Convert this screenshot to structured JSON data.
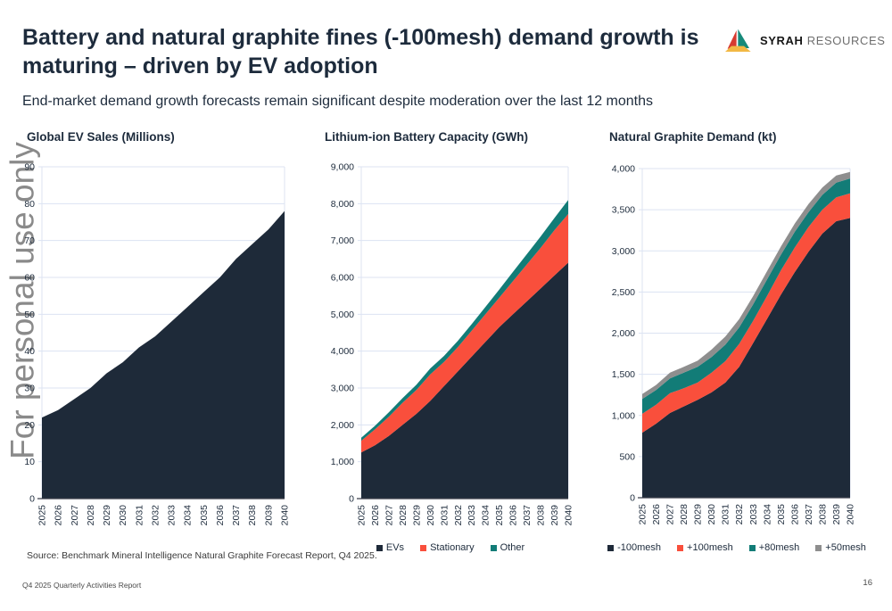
{
  "header": {
    "title_line1": "Battery and natural graphite fines (-100mesh) demand growth is",
    "title_line2": "maturing – driven by EV adoption",
    "subtitle": "End-market demand growth forecasts remain significant despite moderation over the last 12 months"
  },
  "logo": {
    "brand_bold": "SYRAH",
    "brand_light": "RESOURCES",
    "triangle_red": "#d63b30",
    "triangle_teal": "#168a7a",
    "triangle_gold": "#f2b844"
  },
  "watermark_text": "For personal use only",
  "colors": {
    "navy": "#1e2a39",
    "coral": "#f94f3c",
    "teal": "#127c77",
    "gray": "#8e8e8e",
    "gridline": "#dce3f2",
    "axis_line": "#3a3f4a",
    "tick_text": "#1d2b3c"
  },
  "chart_data": [
    {
      "type": "area",
      "stacked": false,
      "title": "Global EV Sales (Millions)",
      "xlabel": "",
      "ylabel": "",
      "x": [
        "2025",
        "2026",
        "2027",
        "2028",
        "2029",
        "2030",
        "2031",
        "2032",
        "2033",
        "2034",
        "2035",
        "2036",
        "2037",
        "2038",
        "2039",
        "2040"
      ],
      "ylim": [
        0,
        90
      ],
      "ystep": 10,
      "comma_format": false,
      "grid": true,
      "legend": false,
      "series": [
        {
          "name": "Global EV Sales",
          "color": "#1e2a39",
          "values": [
            22,
            24,
            27,
            30,
            34,
            37,
            41,
            44,
            48,
            52,
            56,
            60,
            65,
            69,
            73,
            78
          ]
        }
      ]
    },
    {
      "type": "area",
      "stacked": true,
      "title": "Lithium-ion Battery Capacity (GWh)",
      "xlabel": "",
      "ylabel": "",
      "x": [
        "2025",
        "2026",
        "2027",
        "2028",
        "2029",
        "2030",
        "2031",
        "2032",
        "2033",
        "2034",
        "2035",
        "2036",
        "2037",
        "2038",
        "2039",
        "2040"
      ],
      "ylim": [
        0,
        9000
      ],
      "ystep": 1000,
      "comma_format": true,
      "grid": true,
      "legend": true,
      "legend_position": "bottom",
      "series": [
        {
          "name": "EVs",
          "color": "#1e2a39",
          "values": [
            1250,
            1450,
            1700,
            2000,
            2300,
            2650,
            3050,
            3450,
            3850,
            4250,
            4650,
            5000,
            5350,
            5700,
            6050,
            6400
          ]
        },
        {
          "name": "Stationary",
          "color": "#f94f3c",
          "values": [
            320,
            430,
            520,
            600,
            650,
            720,
            660,
            660,
            700,
            750,
            800,
            900,
            1000,
            1100,
            1230,
            1320
          ]
        },
        {
          "name": "Other",
          "color": "#127c77",
          "values": [
            80,
            100,
            120,
            130,
            140,
            160,
            160,
            170,
            180,
            200,
            220,
            250,
            280,
            310,
            330,
            380
          ]
        }
      ]
    },
    {
      "type": "area",
      "stacked": true,
      "title": "Natural Graphite Demand (kt)",
      "xlabel": "",
      "ylabel": "",
      "x": [
        "2025",
        "2026",
        "2027",
        "2028",
        "2029",
        "2030",
        "2031",
        "2032",
        "2033",
        "2034",
        "2035",
        "2036",
        "2037",
        "2038",
        "2039",
        "2040"
      ],
      "ylim": [
        0,
        4000
      ],
      "ystep": 500,
      "comma_format": true,
      "grid": true,
      "legend": true,
      "legend_position": "bottom",
      "series": [
        {
          "name": "-100mesh",
          "color": "#1e2a39",
          "values": [
            790,
            900,
            1030,
            1110,
            1190,
            1280,
            1400,
            1590,
            1880,
            2170,
            2465,
            2740,
            2990,
            3210,
            3360,
            3400
          ]
        },
        {
          "name": "+100mesh",
          "color": "#f94f3c",
          "values": [
            230,
            230,
            240,
            220,
            210,
            240,
            260,
            280,
            270,
            280,
            295,
            300,
            300,
            290,
            290,
            300
          ]
        },
        {
          "name": "+80mesh",
          "color": "#127c77",
          "values": [
            180,
            180,
            180,
            190,
            190,
            190,
            200,
            200,
            200,
            200,
            190,
            190,
            180,
            180,
            180,
            180
          ]
        },
        {
          "name": "+50mesh",
          "color": "#8e8e8e",
          "values": [
            60,
            60,
            70,
            70,
            75,
            90,
            100,
            100,
            100,
            100,
            100,
            100,
            100,
            90,
            85,
            80
          ]
        }
      ]
    }
  ],
  "source_note": "Source: Benchmark Mineral Intelligence Natural Graphite Forecast Report, Q4 2025.",
  "footer": {
    "report_title": "Q4 2025 Quarterly Activities Report",
    "page_number": "16"
  }
}
